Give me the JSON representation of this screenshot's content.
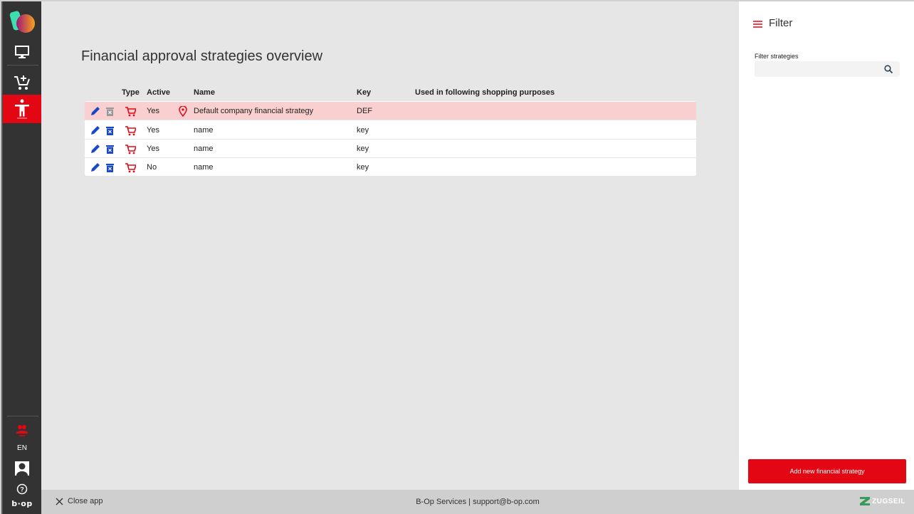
{
  "sidebar": {
    "items": [
      {
        "icon": "logo-icon"
      },
      {
        "icon": "monitor-icon"
      },
      {
        "icon": "cart-add-icon"
      },
      {
        "icon": "accessibility-icon",
        "active": true
      }
    ],
    "bottom": {
      "team_icon": "team-icon",
      "language": "EN",
      "avatar": "avatar-icon",
      "help": "help-icon",
      "brand": "b·op"
    }
  },
  "main": {
    "title": "Financial approval strategies overview",
    "columns": {
      "type": "Type",
      "active": "Active",
      "name": "Name",
      "key": "Key",
      "used": "Used in following shopping purposes"
    },
    "rows": [
      {
        "active": "Yes",
        "name": "Default company financial strategy",
        "key": "DEF",
        "used": "",
        "default": true
      },
      {
        "active": "Yes",
        "name": "name",
        "key": "key",
        "used": ""
      },
      {
        "active": "Yes",
        "name": "name",
        "key": "key",
        "used": ""
      },
      {
        "active": "No",
        "name": "name",
        "key": "key",
        "used": ""
      }
    ]
  },
  "panel": {
    "title": "Filter",
    "filter_label": "Filter strategies",
    "filter_value": "",
    "add_button": "Add new financial strategy"
  },
  "footer": {
    "close": "Close app",
    "contact": "B-Op Services | support@b-op.com",
    "brand": "ZUGSEIL"
  },
  "colors": {
    "accent": "#e30613",
    "edit": "#1a47c8",
    "sidebar": "#333333"
  }
}
